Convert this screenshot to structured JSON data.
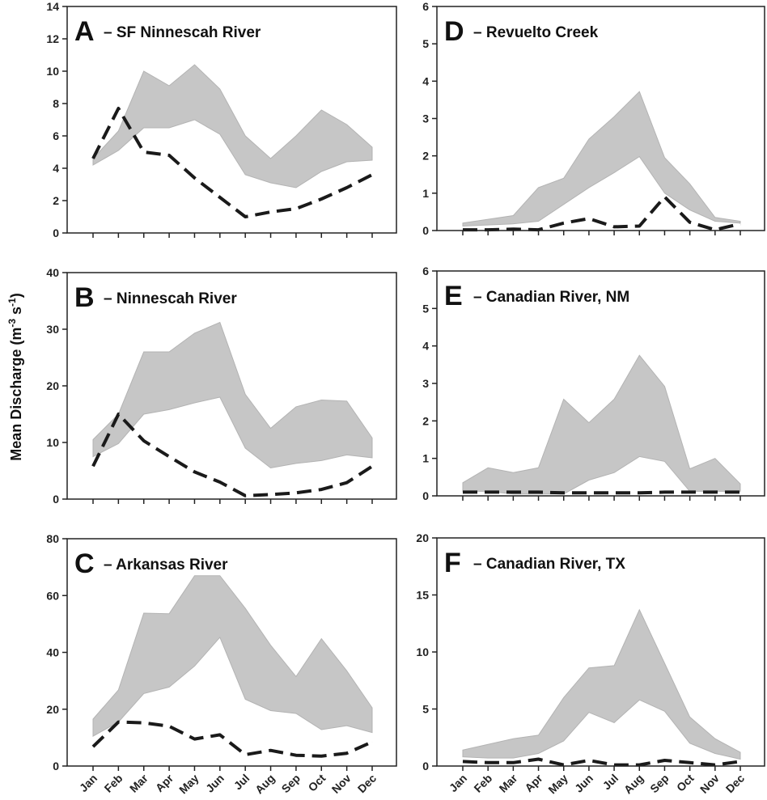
{
  "figure": {
    "y_axis_title": "Mean Discharge (m",
    "y_axis_exp1": "-3",
    "y_axis_mid": " s",
    "y_axis_exp2": "-1",
    "y_axis_close": ")"
  },
  "colors": {
    "band": "#c6c6c6",
    "line": "#1a1a1a",
    "axis": "#222222"
  },
  "chart_data": [
    {
      "id": "A",
      "letter": "A",
      "title": "– SF Ninnescah River",
      "type": "area",
      "ylim": [
        0,
        14
      ],
      "yticks": [
        0,
        2,
        4,
        6,
        8,
        10,
        12,
        14
      ],
      "categories": [
        "Jan",
        "Feb",
        "Mar",
        "Apr",
        "May",
        "Jun",
        "Jul",
        "Aug",
        "Sep",
        "Oct",
        "Nov",
        "Dec"
      ],
      "band_upper": [
        4.6,
        6.3,
        10.0,
        9.1,
        10.4,
        8.9,
        6.0,
        4.6,
        6.0,
        7.6,
        6.7,
        5.3
      ],
      "band_lower": [
        4.2,
        5.1,
        6.5,
        6.5,
        7.0,
        6.1,
        3.6,
        3.1,
        2.8,
        3.8,
        4.4,
        4.5
      ],
      "line": [
        4.6,
        7.7,
        5.0,
        4.8,
        3.4,
        2.2,
        1.0,
        1.3,
        1.5,
        2.1,
        2.8,
        3.6
      ],
      "month_labels": false
    },
    {
      "id": "B",
      "letter": "B",
      "title": "– Ninnescah River",
      "type": "area",
      "ylim": [
        0,
        40
      ],
      "yticks": [
        0,
        10,
        20,
        30,
        40
      ],
      "categories": [
        "Jan",
        "Feb",
        "Mar",
        "Apr",
        "May",
        "Jun",
        "Jul",
        "Aug",
        "Sep",
        "Oct",
        "Nov",
        "Dec"
      ],
      "band_upper": [
        10.5,
        15.0,
        26.0,
        26.0,
        29.3,
        31.2,
        18.5,
        12.5,
        16.3,
        17.5,
        17.3,
        10.8
      ],
      "band_lower": [
        7.5,
        9.8,
        15.0,
        15.8,
        17.0,
        18.0,
        9.0,
        5.5,
        6.3,
        6.8,
        7.8,
        7.3
      ],
      "line": [
        5.8,
        15.0,
        10.3,
        7.5,
        4.8,
        3.0,
        0.6,
        0.8,
        1.1,
        1.7,
        2.9,
        5.8
      ],
      "month_labels": false
    },
    {
      "id": "C",
      "letter": "C",
      "title": "– Arkansas River",
      "type": "area",
      "ylim": [
        0,
        80
      ],
      "yticks": [
        0,
        20,
        40,
        60,
        80
      ],
      "categories": [
        "Jan",
        "Feb",
        "Mar",
        "Apr",
        "May",
        "Jun",
        "Jul",
        "Aug",
        "Sep",
        "Oct",
        "Nov",
        "Dec"
      ],
      "band_upper": [
        16.5,
        26.8,
        53.8,
        53.6,
        67.0,
        67.0,
        55.5,
        42.5,
        31.5,
        44.8,
        33.5,
        20.5
      ],
      "band_lower": [
        10.5,
        15.5,
        25.5,
        27.8,
        35.2,
        45.3,
        23.5,
        19.5,
        18.5,
        12.8,
        14.2,
        11.8
      ],
      "line": [
        6.8,
        15.5,
        15.2,
        14.0,
        9.5,
        11.0,
        4.0,
        5.5,
        3.8,
        3.5,
        4.5,
        8.5
      ],
      "month_labels": true
    },
    {
      "id": "D",
      "letter": "D",
      "title": "– Revuelto Creek",
      "type": "area",
      "ylim": [
        0,
        6
      ],
      "yticks": [
        0,
        1,
        2,
        3,
        4,
        5,
        6
      ],
      "categories": [
        "Jan",
        "Feb",
        "Mar",
        "Apr",
        "May",
        "Jun",
        "Jul",
        "Aug",
        "Sep",
        "Oct",
        "Nov",
        "Dec"
      ],
      "band_upper": [
        0.2,
        0.3,
        0.4,
        1.15,
        1.4,
        2.45,
        3.05,
        3.72,
        1.95,
        1.25,
        0.35,
        0.25
      ],
      "band_lower": [
        0.12,
        0.15,
        0.18,
        0.25,
        0.7,
        1.15,
        1.55,
        1.98,
        1.0,
        0.55,
        0.25,
        0.2
      ],
      "line": [
        0.02,
        0.02,
        0.04,
        0.02,
        0.2,
        0.32,
        0.1,
        0.12,
        0.9,
        0.22,
        0.02,
        0.18
      ],
      "month_labels": false
    },
    {
      "id": "E",
      "letter": "E",
      "title": "– Canadian River, NM",
      "type": "area",
      "ylim": [
        0,
        6
      ],
      "yticks": [
        0,
        1,
        2,
        3,
        4,
        5,
        6
      ],
      "categories": [
        "Jan",
        "Feb",
        "Mar",
        "Apr",
        "May",
        "Jun",
        "Jul",
        "Aug",
        "Sep",
        "Oct",
        "Nov",
        "Dec"
      ],
      "band_upper": [
        0.35,
        0.75,
        0.62,
        0.75,
        2.58,
        1.95,
        2.58,
        3.75,
        2.92,
        0.72,
        1.0,
        0.32
      ],
      "band_lower": [
        0.12,
        0.12,
        0.05,
        0.05,
        0.05,
        0.42,
        0.62,
        1.05,
        0.92,
        0.12,
        0.12,
        0.12
      ],
      "line": [
        0.1,
        0.1,
        0.1,
        0.1,
        0.08,
        0.08,
        0.08,
        0.08,
        0.1,
        0.1,
        0.1,
        0.1
      ],
      "month_labels": false
    },
    {
      "id": "F",
      "letter": "F",
      "title": "– Canadian River, TX",
      "type": "area",
      "ylim": [
        0,
        20
      ],
      "yticks": [
        0,
        5,
        10,
        15,
        20
      ],
      "categories": [
        "Jan",
        "Feb",
        "Mar",
        "Apr",
        "May",
        "Jun",
        "Jul",
        "Aug",
        "Sep",
        "Oct",
        "Nov",
        "Dec"
      ],
      "band_upper": [
        1.4,
        1.9,
        2.4,
        2.7,
        6.0,
        8.6,
        8.8,
        13.7,
        9.0,
        4.3,
        2.4,
        1.2
      ],
      "band_lower": [
        0.8,
        0.7,
        0.7,
        1.1,
        2.2,
        4.7,
        3.8,
        5.8,
        4.8,
        2.0,
        1.1,
        0.6
      ],
      "line": [
        0.4,
        0.3,
        0.3,
        0.6,
        0.1,
        0.5,
        0.1,
        0.1,
        0.5,
        0.3,
        0.1,
        0.4
      ],
      "month_labels": true
    }
  ]
}
